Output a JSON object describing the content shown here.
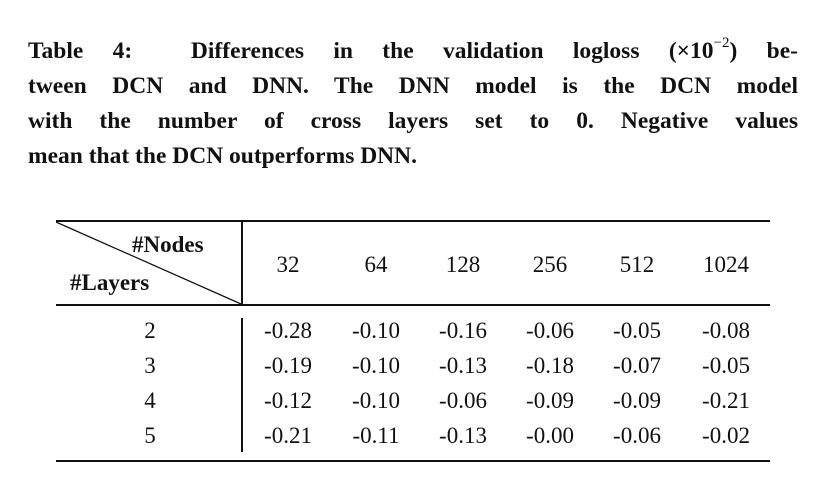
{
  "caption": {
    "label": "Table 4:",
    "line1a": "Differences in the validation logloss (×10",
    "exp": "−2",
    "line1b": ") be-",
    "line2": "tween DCN and DNN. The DNN model is the DCN model",
    "line3": "with the number of cross layers set to 0.  Negative values",
    "line4": "mean that the DCN outperforms DNN."
  },
  "table": {
    "corner_top": "#Nodes",
    "corner_bottom": "#Layers",
    "columns": [
      "32",
      "64",
      "128",
      "256",
      "512",
      "1024"
    ],
    "rows": [
      {
        "layers": "2",
        "values": [
          "-0.28",
          "-0.10",
          "-0.16",
          "-0.06",
          "-0.05",
          "-0.08"
        ]
      },
      {
        "layers": "3",
        "values": [
          "-0.19",
          "-0.10",
          "-0.13",
          "-0.18",
          "-0.07",
          "-0.05"
        ]
      },
      {
        "layers": "4",
        "values": [
          "-0.12",
          "-0.10",
          "-0.06",
          "-0.09",
          "-0.09",
          "-0.21"
        ]
      },
      {
        "layers": "5",
        "values": [
          "-0.21",
          "-0.11",
          "-0.13",
          "-0.00",
          "-0.06",
          "-0.02"
        ]
      }
    ]
  }
}
